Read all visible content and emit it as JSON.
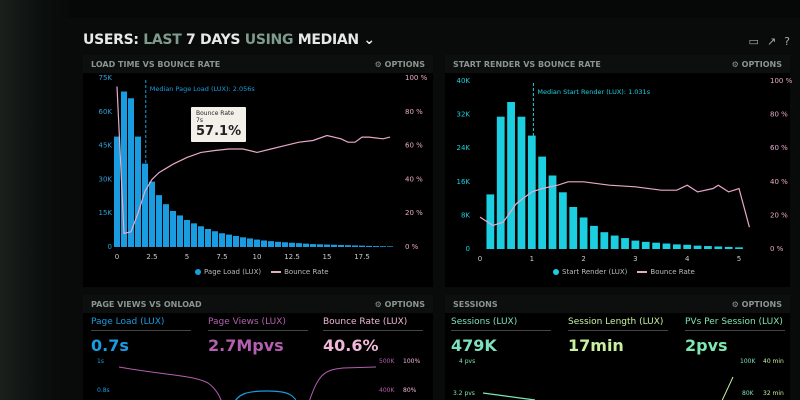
{
  "header": {
    "title_a": "USERS:",
    "title_b": "LAST",
    "title_c": "7 DAYS",
    "title_d": "USING",
    "title_e": "MEDIAN",
    "icons": [
      "monitor-icon",
      "share-icon",
      "help-icon"
    ]
  },
  "options_label": "OPTIONS",
  "colors": {
    "blue": "#1a9ce0",
    "cyan": "#1ccfe0",
    "pink": "#e8a9c8",
    "purple": "#b45fb0",
    "green": "#7de0c0",
    "lime": "#c8f0a0"
  },
  "chart_data": [
    {
      "type": "bar",
      "title": "LOAD TIME VS BOUNCE RATE",
      "median_label": "Median Page Load (LUX): 2.056s",
      "median": 2.056,
      "xlim": [
        0,
        20
      ],
      "xticks": [
        "0",
        "2.5",
        "5",
        "7.5",
        "10",
        "12.5",
        "15",
        "17.5"
      ],
      "xtick_values": [
        0,
        2.5,
        5,
        7.5,
        10,
        12.5,
        15,
        17.5
      ],
      "ylim": [
        0,
        75000
      ],
      "yticks": [
        "0",
        "15K",
        "30K",
        "45K",
        "60K",
        "75K"
      ],
      "y2ticks": [
        "0 %",
        "20 %",
        "40 %",
        "60 %",
        "80 %",
        "100 %"
      ],
      "legend": [
        "Page Load (LUX)",
        "Bounce Rate"
      ],
      "bar_width": 0.43,
      "bars_x_step": 0.5,
      "bars": [
        49000,
        69000,
        66000,
        49000,
        37000,
        29000,
        23000,
        19000,
        16000,
        14000,
        12000,
        10500,
        9200,
        8000,
        7000,
        6100,
        5500,
        4900,
        4300,
        3800,
        3300,
        2900,
        2600,
        2300,
        2100,
        1900,
        1700,
        1500,
        1300,
        1200,
        1100,
        1000,
        900,
        800,
        700,
        600,
        500,
        420,
        350,
        300
      ],
      "line": [
        [
          0,
          95
        ],
        [
          0.5,
          8
        ],
        [
          1,
          9
        ],
        [
          1.5,
          20
        ],
        [
          2,
          33
        ],
        [
          2.5,
          40
        ],
        [
          3,
          44
        ],
        [
          4,
          49
        ],
        [
          5,
          53
        ],
        [
          6,
          56
        ],
        [
          7,
          57.1
        ],
        [
          8,
          58
        ],
        [
          9,
          58
        ],
        [
          10,
          56
        ],
        [
          11,
          58
        ],
        [
          12,
          60
        ],
        [
          13,
          62
        ],
        [
          14,
          63
        ],
        [
          15,
          66
        ],
        [
          16,
          64
        ],
        [
          16.5,
          62
        ],
        [
          17,
          62
        ],
        [
          17.5,
          65
        ],
        [
          18,
          65
        ],
        [
          19,
          64
        ],
        [
          19.5,
          65
        ]
      ],
      "tooltip": {
        "label": "Bounce Rate",
        "x": "7s",
        "value": "57.1%"
      }
    },
    {
      "type": "bar",
      "title": "START RENDER VS BOUNCE RATE",
      "median_label": "Median Start Render (LUX): 1.031s",
      "median": 1.031,
      "xlim": [
        0,
        5.2
      ],
      "xticks": [
        "0",
        "1",
        "2",
        "3",
        "4",
        "5"
      ],
      "xtick_values": [
        0,
        1,
        2,
        3,
        4,
        5
      ],
      "ylim": [
        0,
        40000
      ],
      "yticks": [
        "0",
        "8K",
        "16K",
        "24K",
        "32K",
        "40K"
      ],
      "y2ticks": [
        "0 %",
        "20 %",
        "40 %",
        "60 %",
        "80 %",
        "100 %"
      ],
      "legend": [
        "Start Render (LUX)",
        "Bounce Rate"
      ],
      "bar_width": 0.15,
      "bars_x_step": 0.2,
      "bars": [
        0,
        13000,
        31500,
        35000,
        31500,
        27000,
        22000,
        17500,
        13500,
        10000,
        7500,
        5500,
        4000,
        3200,
        2600,
        2000,
        1700,
        1500,
        1300,
        1100,
        1000,
        800,
        700,
        600,
        500,
        400
      ],
      "line": [
        [
          0,
          19
        ],
        [
          0.25,
          14
        ],
        [
          0.45,
          16
        ],
        [
          0.7,
          27
        ],
        [
          1,
          34
        ],
        [
          1.2,
          36
        ],
        [
          1.5,
          38
        ],
        [
          1.7,
          40
        ],
        [
          2,
          40
        ],
        [
          2.5,
          38
        ],
        [
          3,
          37
        ],
        [
          3.5,
          35
        ],
        [
          3.8,
          35
        ],
        [
          4,
          38
        ],
        [
          4.2,
          34
        ],
        [
          4.5,
          36
        ],
        [
          4.6,
          38
        ],
        [
          4.8,
          34
        ],
        [
          5,
          36
        ],
        [
          5.2,
          13
        ]
      ]
    }
  ],
  "page_views": {
    "title": "PAGE VIEWS VS ONLOAD",
    "kpis": [
      {
        "label": "Page Load (LUX)",
        "value": "0.7s"
      },
      {
        "label": "Page Views (LUX)",
        "value": "2.7Mpvs"
      },
      {
        "label": "Bounce Rate (LUX)",
        "value": "40.6%"
      }
    ],
    "left_ticks": [
      "1s",
      "0.8s"
    ],
    "right_ticks_a": [
      "500K",
      "400K"
    ],
    "right_ticks_b": [
      "100%",
      "80%"
    ]
  },
  "sessions": {
    "title": "SESSIONS",
    "kpis": [
      {
        "label": "Sessions (LUX)",
        "value": "479K"
      },
      {
        "label": "Session Length (LUX)",
        "value": "17min"
      },
      {
        "label": "PVs Per Session (LUX)",
        "value": "2pvs"
      }
    ],
    "left_ticks": [
      "4 pvs",
      "3.2 pvs"
    ],
    "right_ticks_a": [
      "100K",
      "80K"
    ],
    "right_ticks_b": [
      "40 min",
      "32 min"
    ]
  }
}
